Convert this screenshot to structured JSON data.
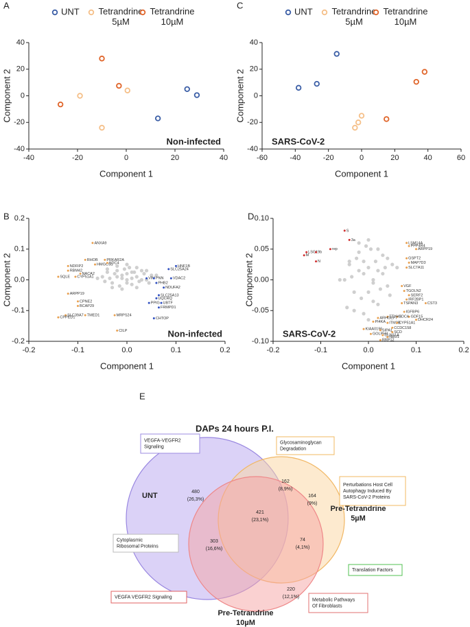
{
  "chart_data": [
    {
      "panel": "A",
      "type": "scatter",
      "xlabel": "Component 1",
      "ylabel": "Component 2",
      "annotation": "Non-infected",
      "annotation_corner": "lower right",
      "xlim": [
        -40,
        40
      ],
      "xticks": [
        -40,
        -20,
        0,
        20,
        40
      ],
      "ylim": [
        -40,
        40
      ],
      "yticks": [
        -40,
        -20,
        0,
        20,
        40
      ],
      "legend": "top",
      "series": [
        {
          "name": "UNT",
          "color": "#3b5ea6",
          "x": [
            25,
            29,
            13
          ],
          "values": [
            5,
            0.5,
            -17
          ]
        },
        {
          "name": "Tetrandrine 5µM",
          "color": "#f5bf88",
          "x": [
            -19,
            0.5,
            -10
          ],
          "values": [
            0,
            4,
            -24
          ]
        },
        {
          "name": "Tetrandrine 10µM",
          "color": "#e0652a",
          "x": [
            -10,
            -3,
            -27
          ],
          "values": [
            28,
            7.5,
            -6.5
          ]
        }
      ]
    },
    {
      "panel": "C",
      "type": "scatter",
      "xlabel": "Component 1",
      "ylabel": "Component 2",
      "annotation": "SARS-CoV-2",
      "annotation_corner": "lower left",
      "xlim": [
        -60,
        60
      ],
      "xticks": [
        -60,
        -40,
        -20,
        0,
        20,
        40,
        60
      ],
      "ylim": [
        -40,
        40
      ],
      "yticks": [
        -40,
        -20,
        0,
        20,
        40
      ],
      "legend": "top",
      "series": [
        {
          "name": "UNT",
          "color": "#3b5ea6",
          "x": [
            -15,
            -27,
            -38
          ],
          "values": [
            31.5,
            9,
            6
          ]
        },
        {
          "name": "Tetrandrine 5µM",
          "color": "#f5bf88",
          "x": [
            0,
            -2,
            -4
          ],
          "values": [
            -15,
            -20,
            -24
          ]
        },
        {
          "name": "Tetrandrine 10µM",
          "color": "#e0652a",
          "x": [
            38,
            33,
            15
          ],
          "values": [
            18,
            10.5,
            -17.5
          ]
        }
      ]
    },
    {
      "panel": "B",
      "type": "scatter",
      "xlabel": "Component 1",
      "ylabel": "Component 2",
      "annotation": "Non-infected",
      "annotation_corner": "lower right",
      "xlim": [
        -0.2,
        0.2
      ],
      "xticks": [
        -0.2,
        -0.1,
        {
          "value": 0,
          "label": "0.0"
        },
        0.1,
        0.2
      ],
      "ylim": [
        -0.2,
        0.2
      ],
      "yticks": [
        -0.2,
        -0.1,
        {
          "value": 0,
          "label": "0.0"
        },
        0.1,
        0.2
      ],
      "series": [
        {
          "color": "#cfcfcf",
          "x": [
            -0.05,
            -0.04,
            -0.03,
            -0.02,
            -0.01,
            0,
            0.01,
            0.02,
            0.03,
            0.04,
            0.05,
            -0.045,
            -0.035,
            -0.025,
            -0.015,
            -0.005,
            0.005,
            0.015,
            0.025,
            0.035,
            0.045,
            -0.03,
            -0.02,
            -0.01,
            0,
            0.01,
            0.02,
            0.03,
            -0.06,
            0.06,
            -0.02,
            0,
            0.02,
            -0.04,
            0.04,
            0.0,
            -0.01,
            0.01
          ],
          "values": [
            0.01,
            0.025,
            -0.01,
            0.03,
            0.005,
            0.02,
            -0.015,
            0.01,
            0.03,
            0,
            0.015,
            -0.005,
            0.005,
            0.02,
            -0.02,
            0.035,
            0.04,
            0.025,
            -0.005,
            0.02,
            -0.01,
            -0.025,
            0.045,
            -0.03,
            -0.01,
            0.005,
            -0.025,
            0.0,
            0.005,
            0.015,
            0.01,
            0.05,
            0.04,
            0.035,
            0.03,
            0.0,
            0.015,
            0.025
          ]
        },
        {
          "color": "#e8a050",
          "labels": [
            "ANXA9",
            "RHOB",
            "PRKAR2A",
            "NDFIP2",
            "HMGCS1",
            "SDC4",
            "RBM42",
            "NACA2",
            "SQLE",
            "CYP51A1",
            "ARPP19",
            "CPNE2",
            "BCAP29",
            "SLC39A7",
            "TMED1",
            "CPPED1",
            "MRPS24",
            "CILP"
          ],
          "x": [
            -0.07,
            -0.085,
            -0.045,
            -0.12,
            -0.065,
            -0.04,
            -0.12,
            -0.095,
            -0.14,
            -0.105,
            -0.12,
            -0.1,
            -0.1,
            -0.125,
            -0.085,
            -0.14,
            -0.025,
            -0.02
          ],
          "values": [
            0.12,
            0.065,
            0.065,
            0.045,
            0.05,
            0.055,
            0.03,
            0.02,
            0.01,
            0.01,
            -0.045,
            -0.07,
            -0.085,
            -0.115,
            -0.115,
            -0.122,
            -0.115,
            -0.165
          ]
        },
        {
          "color": "#3050c0",
          "labels": [
            "HNF1B",
            "SLC25A24",
            "VIM",
            "PNN",
            "VDAC2",
            "PHB2",
            "NDUFA2",
            "SLC25A13",
            "UQCRQ",
            "PPIG",
            "UBTF",
            "FRMPD1",
            "CHTOP"
          ],
          "x": [
            0.1,
            0.085,
            0.04,
            0.055,
            0.09,
            0.06,
            0.075,
            0.065,
            0.06,
            0.045,
            0.07,
            0.065,
            0.055
          ],
          "values": [
            0.045,
            0.035,
            0.005,
            0.005,
            0.005,
            -0.01,
            -0.025,
            -0.05,
            -0.06,
            -0.075,
            -0.075,
            -0.09,
            -0.125
          ]
        }
      ]
    },
    {
      "panel": "D",
      "type": "scatter",
      "xlabel": "Component 1",
      "ylabel": "Component 2",
      "annotation": "SARS-CoV-2",
      "annotation_corner": "lower left",
      "xlim": [
        -0.2,
        0.2
      ],
      "xticks": [
        -0.2,
        -0.1,
        {
          "value": 0,
          "label": "0.0"
        },
        0.1,
        0.2
      ],
      "ylim": [
        -0.1,
        0.1
      ],
      "yticks": [
        {
          "value": -0.1,
          "label": "-0.10"
        },
        -0.05,
        {
          "value": 0,
          "label": "0.00"
        },
        0.05,
        {
          "value": 0.1,
          "label": "0.10"
        }
      ],
      "series": [
        {
          "color": "#cfcfcf",
          "x": [
            -0.05,
            -0.04,
            -0.03,
            -0.02,
            -0.01,
            0,
            0.01,
            0.02,
            0.03,
            0.04,
            0.05,
            -0.045,
            -0.035,
            -0.025,
            -0.015,
            -0.005,
            0.005,
            0.015,
            0.025,
            0.035,
            0.045,
            -0.03,
            -0.02,
            -0.01,
            0,
            0.01,
            0.02,
            0.03,
            -0.06,
            0.06,
            -0.02,
            0,
            0.02,
            -0.04,
            0.04,
            0.0,
            -0.01,
            0.01
          ],
          "values": [
            0.0,
            0.03,
            -0.02,
            0.045,
            0.01,
            0.02,
            -0.035,
            0.015,
            0.04,
            -0.01,
            0.025,
            -0.045,
            0.005,
            0.035,
            -0.03,
            0.055,
            0.05,
            0.03,
            -0.015,
            0.02,
            -0.025,
            -0.05,
            0.06,
            -0.055,
            -0.02,
            0.0,
            -0.04,
            0.01,
            0.0,
            0.02,
            0.015,
            0.065,
            0.05,
            0.025,
            0.035,
            -0.065,
            0.03,
            -0.005
          ]
        },
        {
          "color": "#d03030",
          "labels": [
            "S",
            "3a",
            "rep",
            "LSG1",
            "9b",
            "M",
            "N"
          ],
          "x": [
            -0.05,
            -0.04,
            -0.08,
            -0.13,
            -0.11,
            -0.135,
            -0.11
          ],
          "values": [
            0.08,
            0.065,
            0.05,
            0.045,
            0.045,
            0.04,
            0.03
          ]
        },
        {
          "color": "#e8a050",
          "labels": [
            "LSM14A",
            "PPP4R4",
            "ARPP19",
            "GSPT2",
            "MAP7D3",
            "SLC7A11",
            "VGF",
            "TGOLN2",
            "SERF2",
            "IRF2BP1",
            "TSPAN3",
            "CST3",
            "IGFBP6",
            "GDF15",
            "DHCR24",
            "SDC4",
            "TTYH3",
            "ARHGEF7",
            "PI4KA",
            "ITM2B",
            "CYP51A1",
            "CCDC158",
            "KIAA0196",
            "SIPA1",
            "SCD",
            "GOLPH3",
            "CLNS1A",
            "NEU1",
            "RRP12"
          ],
          "x": [
            0.08,
            0.085,
            0.1,
            0.08,
            0.085,
            0.08,
            0.07,
            0.075,
            0.085,
            0.08,
            0.07,
            0.12,
            0.075,
            0.085,
            0.1,
            0.06,
            0.04,
            0.02,
            0.01,
            0.04,
            0.06,
            0.05,
            -0.01,
            0.025,
            0.05,
            0.005,
            0.03,
            0.04,
            0.025
          ],
          "values": [
            0.06,
            0.055,
            0.05,
            0.035,
            0.028,
            0.02,
            -0.01,
            -0.018,
            -0.025,
            -0.032,
            -0.038,
            -0.038,
            -0.052,
            -0.06,
            -0.065,
            -0.06,
            -0.06,
            -0.062,
            -0.068,
            -0.07,
            -0.07,
            -0.078,
            -0.08,
            -0.082,
            -0.085,
            -0.088,
            -0.09,
            -0.093,
            -0.098
          ]
        }
      ]
    },
    {
      "panel": "E",
      "type": "venn",
      "title": "DAPs 24 hours P.I.",
      "sets": [
        {
          "name": "UNT",
          "color": "#b7a6ef",
          "edge": "#9886e0"
        },
        {
          "name": "Pre-Tetrandrine 5µM",
          "color": "#fbd6a0",
          "edge": "#f1b764"
        },
        {
          "name": "Pre-Tetrandrine 10µM",
          "color": "#f5a3a4",
          "edge": "#ee8788"
        }
      ],
      "regions": [
        {
          "count": 480,
          "percent_label": "(26,3%)"
        },
        {
          "count": 162,
          "percent_label": "(8,9%)"
        },
        {
          "count": 164,
          "percent_label": "(9%)"
        },
        {
          "count": 421,
          "percent_label": "(23,1%)"
        },
        {
          "count": 303,
          "percent_label": "(16,6%)"
        },
        {
          "count": 74,
          "percent_label": "(4,1%)"
        },
        {
          "count": 220,
          "percent_label": "(12,1%)"
        }
      ],
      "annotations": [
        {
          "text": "VEGFA-VEGFR2 Signaling",
          "color": "#9b8be0"
        },
        {
          "text": "Glycosaminoglycan Degradation",
          "color": "#f0b860"
        },
        {
          "text": "Perturbations Host Cell Autophagy Induced By SARS-CoV-2 Proteins",
          "color": "#f0b860"
        },
        {
          "text": "Cytoplasmic Ribosomal Proteins",
          "color": "#bbbbbb"
        },
        {
          "text": "Translation Factors",
          "color": "#50c050"
        },
        {
          "text": "VEGFA VEGFR2 Signaling",
          "color": "#e06060"
        },
        {
          "text": "Metabolic Pathways Of Fibroblasts",
          "color": "#e07070"
        }
      ]
    }
  ]
}
